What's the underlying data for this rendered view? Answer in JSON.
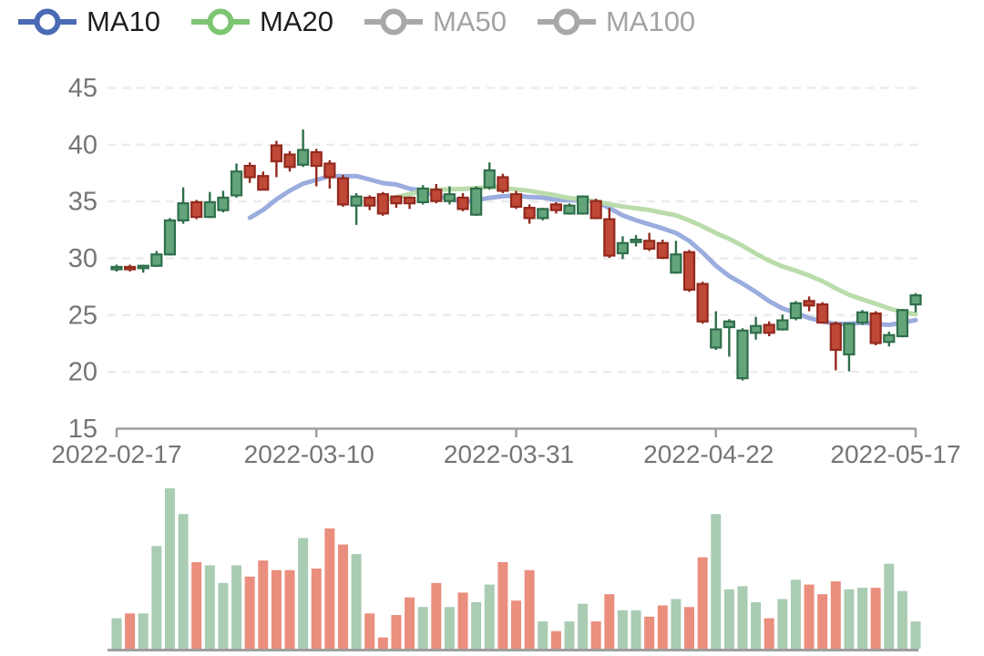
{
  "legend": {
    "items": [
      {
        "label": "MA10",
        "color": "#4a6ab4",
        "enabled": true
      },
      {
        "label": "MA20",
        "color": "#7cc571",
        "enabled": true
      },
      {
        "label": "MA50",
        "color": "#a8a8a8",
        "enabled": false
      },
      {
        "label": "MA100",
        "color": "#a8a8a8",
        "enabled": false
      }
    ]
  },
  "colors": {
    "candle_up_fill": "#64a47a",
    "candle_up_border": "#2f6e4b",
    "candle_down_fill": "#bf4837",
    "candle_down_border": "#93291e",
    "volume_up": "#a9ccb2",
    "volume_down": "#ea8e7e",
    "ma10_line": "#9badde",
    "ma20_line": "#badcab",
    "grid_line": "#ececec",
    "axis_line": "#9e9e9e",
    "axis_text": "#757575",
    "legend_text": "#1f1f1f",
    "legend_text_disabled": "#a3a3a3"
  },
  "chart_data": {
    "type": "candlestick",
    "title": "",
    "y_axis": {
      "min": 15,
      "max": 45,
      "tick_labels": [
        "45",
        "40",
        "35",
        "30",
        "25",
        "20",
        "15"
      ],
      "tick_values": [
        45,
        40,
        35,
        30,
        25,
        20,
        15
      ],
      "grid": "dashed"
    },
    "x_axis": {
      "tick_labels": [
        "2022-02-17",
        "2022-03-10",
        "2022-03-31",
        "2022-04-22",
        "2022-05-17"
      ],
      "tick_candle_indices": [
        0,
        15,
        30,
        45,
        60
      ]
    },
    "overlays": [
      {
        "name": "MA10",
        "period": 10,
        "enabled": true
      },
      {
        "name": "MA20",
        "period": 20,
        "enabled": true
      },
      {
        "name": "MA50",
        "period": 50,
        "enabled": false
      },
      {
        "name": "MA100",
        "period": 100,
        "enabled": false
      }
    ],
    "volume_unit": "relative_percent_of_max",
    "candles": {
      "columns": [
        "open",
        "high",
        "low",
        "close",
        "volume_rel"
      ],
      "rows": [
        [
          29.0,
          29.4,
          28.8,
          29.2,
          19
        ],
        [
          29.2,
          29.4,
          28.8,
          29.0,
          22
        ],
        [
          29.1,
          29.4,
          28.7,
          29.3,
          22
        ],
        [
          29.3,
          30.6,
          29.2,
          30.3,
          64
        ],
        [
          30.3,
          33.5,
          30.2,
          33.3,
          100
        ],
        [
          33.3,
          36.2,
          33.0,
          34.8,
          84
        ],
        [
          34.9,
          35.1,
          33.4,
          33.6,
          54
        ],
        [
          33.6,
          35.8,
          33.5,
          34.9,
          52
        ],
        [
          34.2,
          35.9,
          34.0,
          35.3,
          41
        ],
        [
          35.5,
          38.3,
          35.3,
          37.6,
          52
        ],
        [
          38.1,
          38.4,
          36.6,
          37.1,
          45
        ],
        [
          37.2,
          37.6,
          36.0,
          36.0,
          55
        ],
        [
          39.9,
          40.3,
          37.1,
          38.5,
          49
        ],
        [
          39.1,
          39.4,
          37.6,
          38.0,
          49
        ],
        [
          38.2,
          41.3,
          38.0,
          39.5,
          69
        ],
        [
          39.3,
          39.6,
          36.3,
          38.1,
          50
        ],
        [
          38.3,
          38.6,
          36.1,
          37.1,
          75
        ],
        [
          37.0,
          37.3,
          34.5,
          34.7,
          65
        ],
        [
          34.6,
          35.7,
          32.9,
          35.4,
          59
        ],
        [
          35.3,
          35.5,
          34.2,
          34.6,
          22
        ],
        [
          35.6,
          35.8,
          33.7,
          33.9,
          7
        ],
        [
          35.4,
          35.5,
          34.4,
          34.8,
          21
        ],
        [
          35.3,
          35.4,
          34.3,
          34.8,
          32
        ],
        [
          34.9,
          36.4,
          34.7,
          36.1,
          26
        ],
        [
          36.0,
          36.5,
          34.8,
          35.0,
          41
        ],
        [
          35.0,
          36.3,
          34.7,
          35.6,
          26
        ],
        [
          35.3,
          35.7,
          34.1,
          34.3,
          35
        ],
        [
          33.8,
          36.3,
          33.7,
          36.1,
          29
        ],
        [
          36.2,
          38.4,
          36.0,
          37.7,
          40
        ],
        [
          37.1,
          37.4,
          35.7,
          35.9,
          54
        ],
        [
          35.6,
          35.9,
          34.3,
          34.5,
          30
        ],
        [
          34.4,
          34.7,
          33.0,
          33.5,
          49
        ],
        [
          33.5,
          34.4,
          33.3,
          34.3,
          17
        ],
        [
          34.7,
          34.9,
          33.9,
          34.2,
          11
        ],
        [
          33.9,
          34.8,
          33.8,
          34.6,
          17
        ],
        [
          33.9,
          35.5,
          33.8,
          35.4,
          28
        ],
        [
          35.0,
          35.2,
          33.4,
          33.5,
          17
        ],
        [
          33.4,
          34.4,
          30.0,
          30.2,
          34
        ],
        [
          30.4,
          31.9,
          29.9,
          31.3,
          24
        ],
        [
          31.4,
          32.0,
          31.0,
          31.6,
          24
        ],
        [
          31.5,
          32.2,
          30.6,
          30.8,
          20
        ],
        [
          31.3,
          31.6,
          29.9,
          30.0,
          27
        ],
        [
          28.7,
          31.5,
          28.6,
          30.3,
          31
        ],
        [
          30.5,
          30.7,
          27.0,
          27.2,
          26
        ],
        [
          27.7,
          27.9,
          24.2,
          24.4,
          57
        ],
        [
          22.1,
          25.3,
          21.9,
          23.7,
          84
        ],
        [
          23.9,
          24.6,
          21.3,
          24.4,
          37
        ],
        [
          19.4,
          23.8,
          19.2,
          23.6,
          39
        ],
        [
          23.4,
          24.8,
          22.8,
          24.0,
          29
        ],
        [
          24.1,
          24.4,
          23.1,
          23.4,
          19
        ],
        [
          23.7,
          25.0,
          23.6,
          24.5,
          31
        ],
        [
          24.7,
          26.2,
          24.5,
          26.0,
          43
        ],
        [
          26.2,
          26.6,
          25.3,
          25.8,
          40
        ],
        [
          25.9,
          26.1,
          24.2,
          24.3,
          34
        ],
        [
          24.2,
          24.4,
          20.1,
          21.9,
          42
        ],
        [
          21.5,
          24.3,
          20.0,
          24.2,
          37
        ],
        [
          24.3,
          25.4,
          24.1,
          25.2,
          38
        ],
        [
          25.1,
          25.3,
          22.3,
          22.5,
          38
        ],
        [
          22.6,
          23.5,
          22.2,
          23.2,
          53
        ],
        [
          23.1,
          25.5,
          23.0,
          25.4,
          36
        ],
        [
          25.9,
          26.9,
          25.2,
          26.7,
          17
        ]
      ]
    }
  }
}
